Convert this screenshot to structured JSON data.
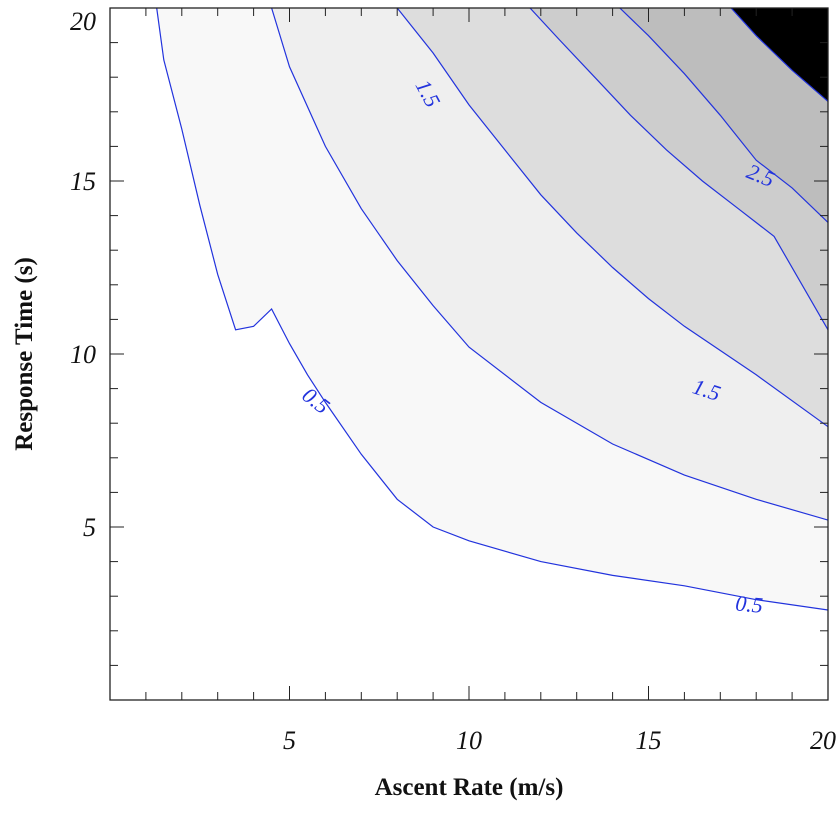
{
  "chart_data": {
    "type": "contour",
    "title": "",
    "xlabel": "Ascent Rate (m/s)",
    "ylabel": "Response Time (s)",
    "xlim": [
      0,
      20
    ],
    "ylim": [
      0,
      20
    ],
    "x_ticks": [
      {
        "value": 5,
        "label": "5"
      },
      {
        "value": 10,
        "label": "10"
      },
      {
        "value": 15,
        "label": "15"
      },
      {
        "value": 20,
        "label": "20"
      }
    ],
    "y_ticks": [
      {
        "value": 5,
        "label": "5"
      },
      {
        "value": 10,
        "label": "10"
      },
      {
        "value": 15,
        "label": "15"
      },
      {
        "value": 20,
        "label": "20"
      }
    ],
    "x_minor_step": 1,
    "y_minor_step": 1,
    "line_color": "#2233dd",
    "fill_colors": [
      "#ffffff",
      "#f8f8f8",
      "#efefef",
      "#dddddd",
      "#cdcdcd",
      "#bdbdbd"
    ],
    "levels": [
      {
        "level": 0.5,
        "points": [
          [
            1.3,
            20
          ],
          [
            1.5,
            18.5
          ],
          [
            2,
            16.5
          ],
          [
            2.5,
            14.3
          ],
          [
            3,
            12.3
          ],
          [
            3.5,
            10.7
          ],
          [
            4,
            10.8
          ],
          [
            4.5,
            11.3
          ],
          [
            5,
            10.3
          ],
          [
            5.5,
            9.4
          ],
          [
            6,
            8.6
          ],
          [
            7,
            7.1
          ],
          [
            8,
            5.8
          ],
          [
            9,
            5
          ],
          [
            10,
            4.6
          ],
          [
            12,
            4
          ],
          [
            14,
            3.6
          ],
          [
            16,
            3.3
          ],
          [
            18,
            2.9
          ],
          [
            20,
            2.6
          ]
        ]
      },
      {
        "level": 1.0,
        "points": [
          [
            4.5,
            20
          ],
          [
            5,
            18.3
          ],
          [
            6,
            16
          ],
          [
            7,
            14.2
          ],
          [
            8,
            12.7
          ],
          [
            9,
            11.4
          ],
          [
            10,
            10.2
          ],
          [
            12,
            8.6
          ],
          [
            14,
            7.4
          ],
          [
            16,
            6.5
          ],
          [
            18,
            5.8
          ],
          [
            20,
            5.2
          ]
        ]
      },
      {
        "level": 1.5,
        "points": [
          [
            8,
            20
          ],
          [
            9,
            18.7
          ],
          [
            10,
            17.2
          ],
          [
            11,
            15.9
          ],
          [
            12,
            14.6
          ],
          [
            13,
            13.5
          ],
          [
            14,
            12.5
          ],
          [
            15,
            11.6
          ],
          [
            16,
            10.8
          ],
          [
            17,
            10.1
          ],
          [
            18,
            9.4
          ],
          [
            20,
            7.9
          ]
        ]
      },
      {
        "level": 2.0,
        "points": [
          [
            11.7,
            20
          ],
          [
            12.5,
            19.1
          ],
          [
            13.5,
            18
          ],
          [
            14.5,
            16.9
          ],
          [
            15.5,
            15.9
          ],
          [
            16.5,
            15
          ],
          [
            17.5,
            14.2
          ],
          [
            18.5,
            13.4
          ],
          [
            20,
            10.7
          ]
        ]
      },
      {
        "level": 2.5,
        "points": [
          [
            14.2,
            20
          ],
          [
            15,
            19.2
          ],
          [
            16,
            18.1
          ],
          [
            17,
            16.9
          ],
          [
            18,
            15.6
          ],
          [
            19,
            14.8
          ],
          [
            20,
            13.8
          ]
        ]
      },
      {
        "level": 3.0,
        "points": [
          [
            17.3,
            20
          ],
          [
            18,
            19.2
          ],
          [
            19,
            18.2
          ],
          [
            20,
            17.3
          ]
        ]
      }
    ],
    "contour_labels": [
      {
        "text": "1.5",
        "x": 8.8,
        "y": 17.5,
        "angle": 62
      },
      {
        "text": "0.5",
        "x": 5.7,
        "y": 8.6,
        "angle": 38
      },
      {
        "text": "1.5",
        "x": 16.6,
        "y": 8.9,
        "angle": 18
      },
      {
        "text": "2.5",
        "x": 18.1,
        "y": 15.1,
        "angle": 22
      },
      {
        "text": "0.5",
        "x": 17.8,
        "y": 2.7,
        "angle": 5
      }
    ]
  }
}
